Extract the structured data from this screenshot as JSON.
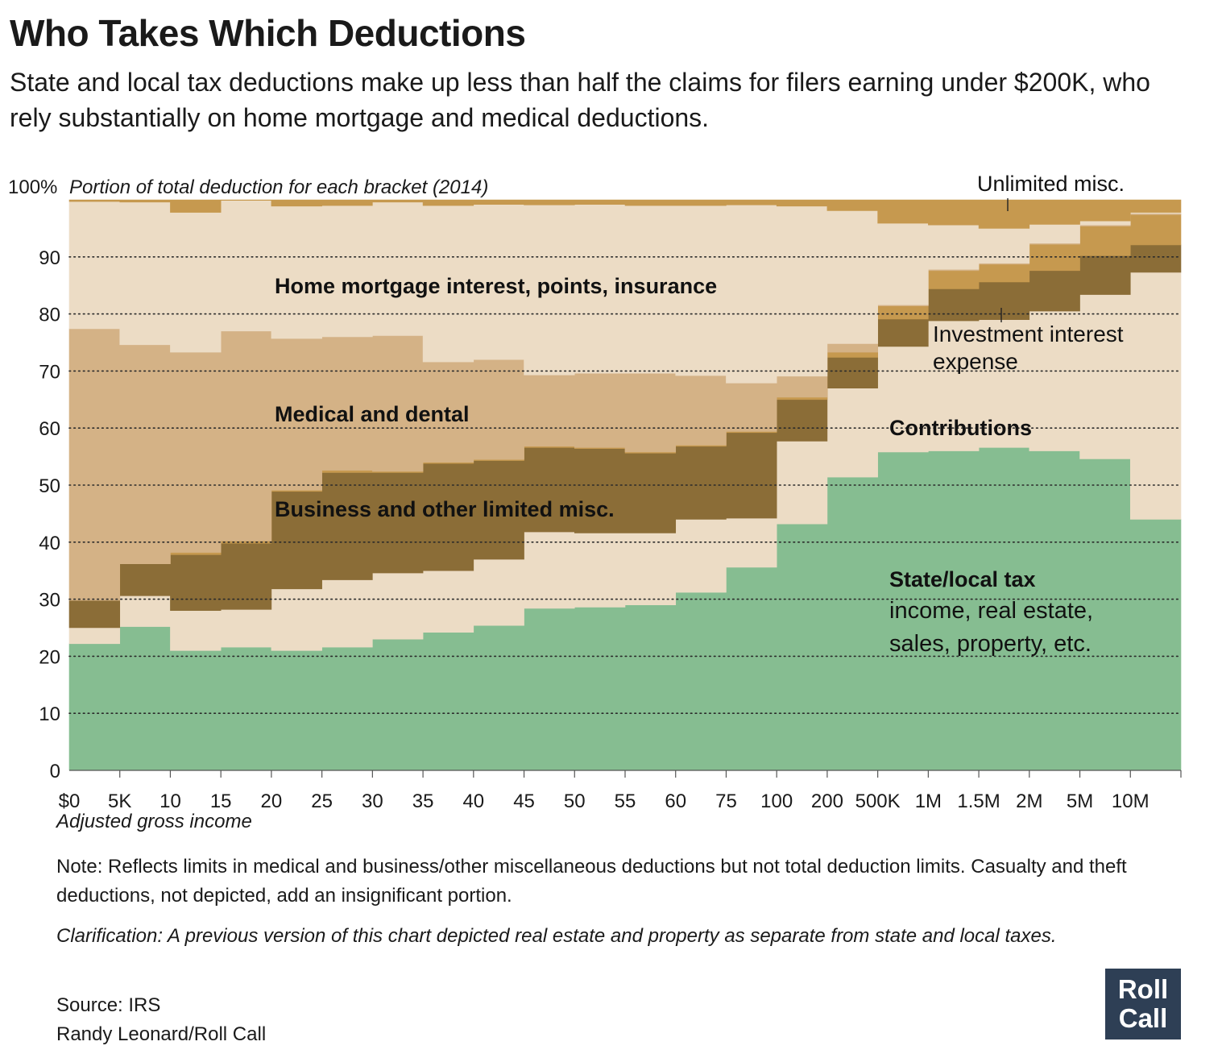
{
  "header": {
    "title": "Who Takes Which Deductions",
    "subtitle": "State and local tax deductions make up less than half the claims for filers earning under $200K, who rely substantially on home mortgage and medical deductions."
  },
  "chart_data": {
    "type": "area",
    "stacked": true,
    "step": true,
    "y_axis_title": "Portion of total deduction for each bracket (2014)",
    "ylim": [
      0,
      100
    ],
    "yticks": [
      0,
      10,
      20,
      30,
      40,
      50,
      60,
      70,
      80,
      90
    ],
    "top_tick_label": "100%",
    "grid": "dotted horizontal",
    "xlabel": "Adjusted gross income",
    "x_tick_labels": [
      "$0",
      "5K",
      "10",
      "15",
      "20",
      "25",
      "30",
      "35",
      "40",
      "45",
      "50",
      "55",
      "60",
      "75",
      "100",
      "200",
      "500K",
      "1M",
      "1.5M",
      "2M",
      "5M",
      "10M"
    ],
    "brackets": 22,
    "series": [
      {
        "name": "State/local tax",
        "sublabel": "income, real estate, sales, property, etc.",
        "color": "#86bd91",
        "values": [
          22.2,
          25.2,
          21.0,
          21.6,
          21.0,
          21.6,
          23.0,
          24.2,
          25.4,
          28.4,
          28.6,
          29.0,
          31.2,
          35.6,
          43.2,
          51.4,
          55.8,
          56.0,
          56.6,
          56.0,
          54.6,
          44.0
        ]
      },
      {
        "name": "Contributions",
        "color": "#ecdcc5",
        "values": [
          2.8,
          5.4,
          7.0,
          6.6,
          10.8,
          11.8,
          11.6,
          10.8,
          11.6,
          13.4,
          13.0,
          12.6,
          12.8,
          8.6,
          14.5,
          15.6,
          18.5,
          22.8,
          22.4,
          24.5,
          28.8,
          43.3
        ]
      },
      {
        "name": "Business and other limited misc.",
        "color": "#8b6d37",
        "values": [
          4.8,
          5.6,
          9.8,
          11.6,
          17.1,
          18.8,
          17.6,
          18.8,
          17.3,
          14.8,
          14.8,
          14.0,
          12.8,
          15.0,
          7.3,
          5.4,
          4.8,
          5.6,
          6.6,
          7.1,
          6.8,
          4.8
        ]
      },
      {
        "name": "Investment interest expense",
        "color": "#c6994f",
        "values": [
          0,
          0,
          0.4,
          0.4,
          0.2,
          0.4,
          0.2,
          0.2,
          0.2,
          0.2,
          0.2,
          0.2,
          0.2,
          0.2,
          0.4,
          0.9,
          2.3,
          3.2,
          3.1,
          4.6,
          5.2,
          5.3
        ]
      },
      {
        "name": "Medical and dental",
        "color": "#d4b286",
        "values": [
          47.6,
          38.4,
          35.1,
          36.8,
          26.6,
          23.4,
          23.8,
          17.6,
          17.5,
          12.5,
          13.0,
          13.8,
          12.2,
          8.5,
          3.7,
          1.5,
          0.2,
          0.2,
          0.2,
          0.2,
          0.2,
          0.2
        ]
      },
      {
        "name": "Home mortgage interest, points, insurance",
        "color": "#ecdcc5",
        "values": [
          22.3,
          25.0,
          24.5,
          22.9,
          23.2,
          23.0,
          23.4,
          27.4,
          27.2,
          29.8,
          29.6,
          29.4,
          29.8,
          31.2,
          29.8,
          23.3,
          14.3,
          7.8,
          6.1,
          3.3,
          0.7,
          0.2
        ]
      },
      {
        "name": "Unlimited misc.",
        "color": "#c6994f",
        "values": [
          0.3,
          0.4,
          2.2,
          0.1,
          1.1,
          1.0,
          0.4,
          1.0,
          0.8,
          0.9,
          0.8,
          1.0,
          1.0,
          0.9,
          1.1,
          1.9,
          4.1,
          4.4,
          5.0,
          4.3,
          3.7,
          2.2
        ]
      }
    ],
    "annotations": [
      {
        "text": "Home mortgage interest, points, insurance"
      },
      {
        "text": "Medical and dental"
      },
      {
        "text": "Business and other limited misc."
      },
      {
        "text": "Contributions"
      },
      {
        "text": "State/local tax"
      },
      {
        "text": "income, real estate,"
      },
      {
        "text": "sales, property, etc."
      },
      {
        "text": "Investment interest"
      },
      {
        "text": "expense"
      },
      {
        "text": "Unlimited misc."
      }
    ]
  },
  "footer": {
    "note": "Note: Reflects limits in medical and business/other miscellaneous deductions but not total deduction limits. Casualty and theft deductions, not depicted, add an insignificant portion.",
    "clarification": "Clarification: A previous version of this chart depicted real estate and property as separate from state and local taxes.",
    "source": "Source: IRS",
    "credit": "Randy Leonard/Roll Call",
    "logo_line1": "Roll",
    "logo_line2": "Call"
  }
}
